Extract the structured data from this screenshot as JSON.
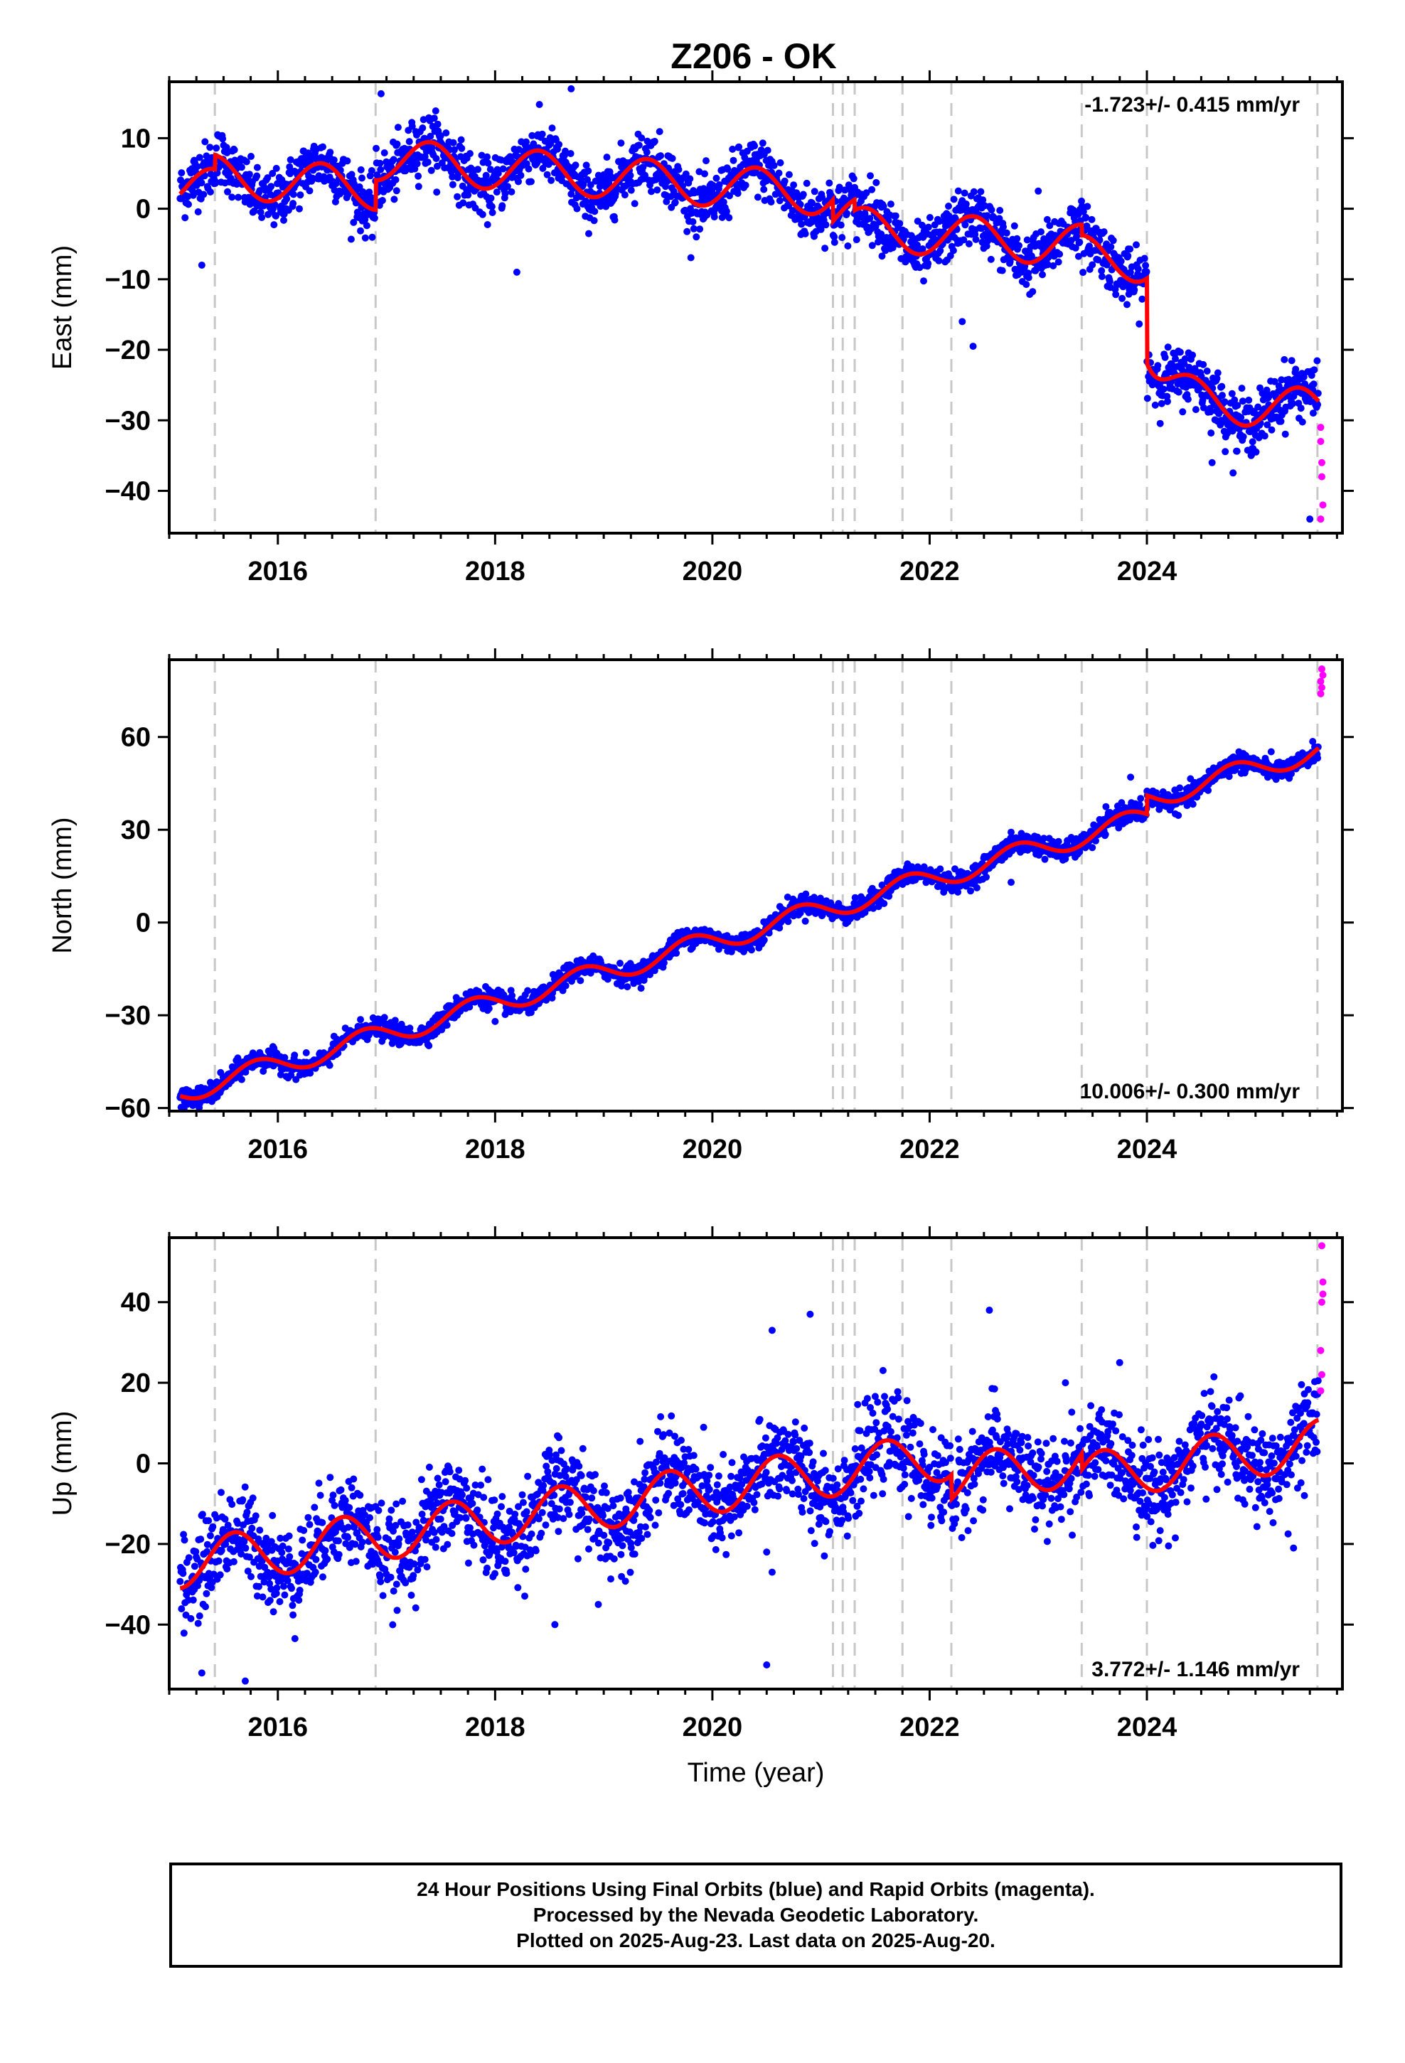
{
  "title": "Z206 - OK",
  "footer": {
    "line1": "24 Hour Positions Using Final Orbits (blue) and Rapid Orbits (magenta).",
    "line2": "Processed by the Nevada Geodetic Laboratory.",
    "line3": "Plotted on 2025-Aug-23. Last data on 2025-Aug-20."
  },
  "colors": {
    "final_orbits": "#0000ff",
    "rapid_orbits": "#ff00ff",
    "model": "#ff0000",
    "event_lines": "#c8c8c8"
  },
  "chart_data": [
    {
      "type": "scatter",
      "ylabel": "East (mm)",
      "xlabel": "",
      "rate_label": "-1.723+/- 0.415 mm/yr",
      "rate_label_position": "top-right",
      "xlim": [
        2015.0,
        2025.8
      ],
      "ylim": [
        -46,
        18
      ],
      "x_ticks": [
        2016,
        2018,
        2020,
        2022,
        2024
      ],
      "y_ticks": [
        10,
        0,
        -10,
        -20,
        -30,
        -40
      ],
      "grid": false,
      "event_lines": [
        2015.42,
        2016.9,
        2021.11,
        2021.2,
        2021.31,
        2021.75,
        2022.2,
        2023.4,
        2024.0,
        2025.57
      ],
      "model_series": {
        "name": "model",
        "trend_start": 3.0,
        "trend_rate": -1.2,
        "annual_amplitude": 3.0,
        "annual_phase": 0.15,
        "offsets": [
          [
            2015.42,
            2.0
          ],
          [
            2016.9,
            4.2
          ],
          [
            2021.11,
            -3.0
          ],
          [
            2021.31,
            -1.5
          ],
          [
            2023.4,
            -1.5
          ],
          [
            2024.0,
            -12.0
          ]
        ],
        "post_event": [
          [
            2024.0,
            -12.0,
            0.15
          ]
        ]
      },
      "scatter_final_noise_mm": 2.0,
      "rapid_points": [
        [
          2025.6,
          -31
        ],
        [
          2025.6,
          -33
        ],
        [
          2025.61,
          -36
        ],
        [
          2025.61,
          -38
        ],
        [
          2025.62,
          -42
        ],
        [
          2025.6,
          -44
        ]
      ],
      "outliers": [
        [
          2015.3,
          -8
        ],
        [
          2016.95,
          16.3
        ],
        [
          2018.2,
          -9
        ],
        [
          2018.7,
          17
        ],
        [
          2022.3,
          -16
        ],
        [
          2022.4,
          -19.5
        ],
        [
          2023.0,
          2.5
        ],
        [
          2024.6,
          -36
        ],
        [
          2025.5,
          -44
        ]
      ]
    },
    {
      "type": "scatter",
      "ylabel": "North (mm)",
      "xlabel": "",
      "rate_label": "10.006+/- 0.300 mm/yr",
      "rate_label_position": "bottom-right",
      "xlim": [
        2015.0,
        2025.8
      ],
      "ylim": [
        -61,
        85
      ],
      "x_ticks": [
        2016,
        2018,
        2020,
        2022,
        2024
      ],
      "y_ticks": [
        60,
        30,
        0,
        -30,
        -60
      ],
      "grid": false,
      "event_lines": [
        2015.42,
        2016.9,
        2021.11,
        2021.2,
        2021.31,
        2021.75,
        2022.2,
        2023.4,
        2024.0,
        2025.57
      ],
      "model_series": {
        "name": "model",
        "trend_start": -55.0,
        "trend_rate": 10.0,
        "annual_amplitude": 3.5,
        "annual_phase": 0.55,
        "offsets": [
          [
            2024.0,
            6.0
          ]
        ],
        "post_event": []
      },
      "scatter_final_noise_mm": 1.6,
      "rapid_points": [
        [
          2025.6,
          74
        ],
        [
          2025.61,
          76
        ],
        [
          2025.6,
          78
        ],
        [
          2025.62,
          80
        ],
        [
          2025.61,
          82
        ]
      ],
      "outliers": [
        [
          2022.75,
          13
        ],
        [
          2018.0,
          -32
        ],
        [
          2023.85,
          47
        ]
      ]
    },
    {
      "type": "scatter",
      "ylabel": "Up (mm)",
      "xlabel": "Time (year)",
      "rate_label": "3.772+/- 1.146 mm/yr",
      "rate_label_position": "bottom-right",
      "xlim": [
        2015.0,
        2025.8
      ],
      "ylim": [
        -56,
        56
      ],
      "x_ticks": [
        2016,
        2018,
        2020,
        2022,
        2024
      ],
      "y_ticks": [
        40,
        20,
        0,
        -20,
        -40
      ],
      "grid": false,
      "event_lines": [
        2015.42,
        2016.9,
        2021.11,
        2021.2,
        2021.31,
        2021.75,
        2022.2,
        2023.4,
        2024.0,
        2025.57
      ],
      "model_series": {
        "name": "model",
        "trend_start": -25.0,
        "trend_rate": 3.8,
        "annual_amplitude": 6.0,
        "annual_phase": 0.35,
        "offsets": [
          [
            2022.2,
            -6.0
          ],
          [
            2023.4,
            -4.0
          ]
        ],
        "post_event": []
      },
      "scatter_final_noise_mm": 5.5,
      "rapid_points": [
        [
          2025.6,
          18
        ],
        [
          2025.61,
          22
        ],
        [
          2025.6,
          28
        ],
        [
          2025.61,
          40
        ],
        [
          2025.62,
          42
        ],
        [
          2025.62,
          45
        ],
        [
          2025.61,
          54
        ]
      ],
      "outliers": [
        [
          2015.3,
          -52
        ],
        [
          2015.7,
          -54
        ],
        [
          2018.55,
          -40
        ],
        [
          2018.95,
          -35
        ],
        [
          2020.5,
          -50
        ],
        [
          2020.5,
          -22
        ],
        [
          2020.55,
          -27
        ],
        [
          2020.55,
          33
        ],
        [
          2020.9,
          37
        ],
        [
          2022.55,
          38
        ],
        [
          2023.25,
          20
        ],
        [
          2025.3,
          -17.5
        ],
        [
          2025.35,
          -21
        ],
        [
          2025.45,
          -8
        ]
      ]
    }
  ]
}
